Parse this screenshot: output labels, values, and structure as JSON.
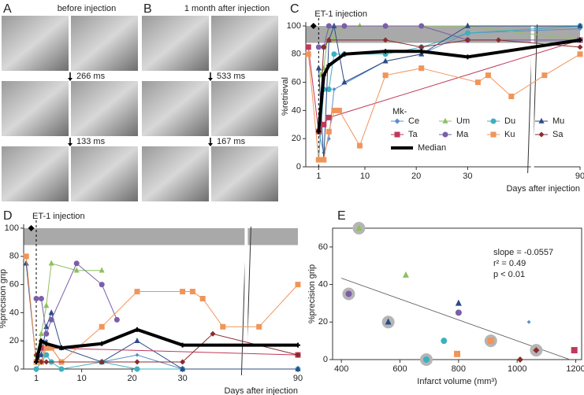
{
  "photo_panels": [
    {
      "panel": "A",
      "title": "before injection",
      "intervals": [
        "266 ms",
        "133 ms"
      ]
    },
    {
      "panel": "B",
      "title": "1 month after injection",
      "intervals": [
        "533 ms",
        "167 ms"
      ]
    }
  ],
  "chart_data": [
    {
      "type": "line",
      "panel": "C",
      "ylabel": "%retrieval",
      "xlabel": "Days after injection",
      "annotation": "ET-1 injection",
      "injection_day": 1,
      "shaded_band": [
        88,
        100
      ],
      "axis_break": [
        42,
        80
      ],
      "xlim": [
        -1.5,
        90
      ],
      "xticks": [
        1,
        10,
        20,
        30,
        90
      ],
      "ylim": [
        0,
        100
      ],
      "yticks": [
        0,
        20,
        40,
        60,
        80,
        100
      ],
      "legend_title": "Mk-",
      "legend": "lower right",
      "baseline_marker": {
        "x": 0,
        "y": 100,
        "color": "#000000"
      },
      "series": [
        {
          "name": "Ce",
          "color": "#5b8fc9",
          "marker": "diamond",
          "x": [
            1,
            2,
            3,
            4,
            14,
            21,
            30,
            90
          ],
          "values": [
            25,
            10,
            20,
            55,
            75,
            80,
            95,
            98
          ]
        },
        {
          "name": "Um",
          "color": "#8dc060",
          "marker": "triangle",
          "x": [
            1,
            1.5,
            2,
            3,
            4,
            6,
            9,
            14,
            30,
            90
          ],
          "values": [
            70,
            65,
            70,
            100,
            90,
            100,
            100,
            100,
            100,
            90
          ]
        },
        {
          "name": "Du",
          "color": "#3bb0c0",
          "marker": "circle",
          "x": [
            1,
            2,
            3,
            4,
            6,
            14,
            21,
            30,
            90
          ],
          "values": [
            5,
            55,
            55,
            80,
            80,
            80,
            85,
            95,
            100
          ]
        },
        {
          "name": "Mu",
          "color": "#2b4b86",
          "marker": "triangle",
          "x": [
            1,
            2,
            3,
            4,
            6,
            14,
            21,
            30,
            90
          ],
          "values": [
            70,
            5,
            90,
            100,
            60,
            75,
            80,
            100,
            100
          ]
        },
        {
          "name": "Ta",
          "color": "#c0395a",
          "marker": "square",
          "x": [
            -1,
            1,
            2,
            3,
            90
          ],
          "values": [
            85,
            25,
            30,
            35,
            90
          ]
        },
        {
          "name": "Ma",
          "color": "#7b5ea8",
          "marker": "circle",
          "x": [
            1,
            2,
            3,
            6,
            14,
            21,
            30,
            90
          ],
          "values": [
            85,
            85,
            100,
            100,
            100,
            100,
            90,
            90
          ]
        },
        {
          "name": "Ku",
          "color": "#f0955a",
          "marker": "square",
          "x": [
            -1,
            1,
            2,
            3,
            4,
            5,
            9,
            14,
            21,
            32,
            34,
            38.5,
            82,
            90
          ],
          "values": [
            80,
            5,
            5,
            25,
            40,
            40,
            15,
            65,
            70,
            60,
            65,
            50,
            65,
            80
          ]
        },
        {
          "name": "Sa",
          "color": "#8b2c2c",
          "marker": "diamond",
          "x": [
            1,
            2,
            3,
            14,
            21,
            30,
            36,
            90
          ],
          "values": [
            25,
            85,
            90,
            90,
            85,
            90,
            90,
            85
          ]
        },
        {
          "name": "Median",
          "color": "#000000",
          "marker": "plus",
          "width": 4,
          "x": [
            1,
            2,
            3,
            6,
            14,
            21,
            30,
            90
          ],
          "values": [
            25,
            65,
            72,
            80,
            82,
            82,
            78,
            90
          ]
        }
      ]
    },
    {
      "type": "line",
      "panel": "D",
      "ylabel": "%precision grip",
      "xlabel": "Days after injection",
      "annotation": "ET-1 injection",
      "injection_day": 1,
      "shaded_band": [
        88,
        100
      ],
      "axis_break": [
        42,
        80
      ],
      "xlim": [
        -1.5,
        90
      ],
      "xticks": [
        1,
        10,
        20,
        30,
        90
      ],
      "ylim": [
        0,
        100
      ],
      "yticks": [
        0,
        20,
        40,
        60,
        80,
        100
      ],
      "baseline_marker": {
        "x": 0,
        "y": 100,
        "color": "#000000"
      },
      "series": [
        {
          "color": "#5b8fc9",
          "marker": "diamond",
          "x": [
            1,
            2,
            3,
            6,
            14,
            21,
            30,
            90
          ],
          "values": [
            0,
            5,
            20,
            5,
            5,
            10,
            0,
            0
          ]
        },
        {
          "color": "#8dc060",
          "marker": "triangle",
          "x": [
            1,
            2,
            3,
            4,
            9,
            14
          ],
          "values": [
            10,
            25,
            45,
            75,
            70,
            70
          ]
        },
        {
          "color": "#3bb0c0",
          "marker": "circle",
          "x": [
            1,
            2,
            3,
            4,
            6,
            14,
            21,
            30,
            90
          ],
          "values": [
            0,
            5,
            10,
            5,
            0,
            5,
            0,
            0,
            0
          ]
        },
        {
          "color": "#2b4b86",
          "marker": "triangle",
          "x": [
            -1,
            1,
            2,
            3,
            4,
            6,
            14,
            21,
            30,
            90
          ],
          "values": [
            75,
            5,
            10,
            30,
            40,
            15,
            5,
            20,
            0,
            0
          ]
        },
        {
          "color": "#c0395a",
          "marker": "square",
          "x": [
            1,
            2,
            3,
            90
          ],
          "values": [
            5,
            15,
            15,
            10
          ]
        },
        {
          "color": "#7b5ea8",
          "marker": "circle",
          "x": [
            1,
            2,
            3,
            4,
            9,
            14,
            17
          ],
          "values": [
            50,
            50,
            25,
            35,
            75,
            60,
            35
          ]
        },
        {
          "color": "#f0955a",
          "marker": "square",
          "x": [
            -1,
            1,
            2,
            3,
            4,
            6,
            14,
            21,
            30,
            32,
            34,
            38,
            82,
            90
          ],
          "values": [
            80,
            5,
            5,
            15,
            15,
            5,
            30,
            55,
            55,
            55,
            50,
            30,
            30,
            60
          ]
        },
        {
          "color": "#8b2c2c",
          "marker": "diamond",
          "x": [
            1,
            2,
            3,
            14,
            21,
            30,
            36,
            90
          ],
          "values": [
            10,
            5,
            5,
            5,
            5,
            5,
            25,
            10
          ]
        },
        {
          "color": "#000000",
          "marker": "plus",
          "width": 4,
          "x": [
            1,
            2,
            3,
            6,
            14,
            21,
            30,
            90
          ],
          "values": [
            5,
            20,
            18,
            15,
            18,
            28,
            17,
            17
          ]
        }
      ]
    },
    {
      "type": "scatter",
      "panel": "E",
      "ylabel": "%precision grip",
      "xlabel": "Infarct volume (mm³)",
      "annotations": [
        "slope = -0.0557",
        "r² = 0.49",
        "p < 0.01"
      ],
      "xlim": [
        370,
        1220
      ],
      "xticks": [
        400,
        600,
        800,
        1000,
        1200
      ],
      "ylim": [
        0,
        70
      ],
      "yticks": [
        0,
        20,
        40,
        60
      ],
      "fit_line": {
        "x": [
          400,
          1180
        ],
        "values": [
          43.4,
          0
        ]
      },
      "series": [
        {
          "color": "#8dc060",
          "marker": "triangle",
          "x": [
            460,
            620
          ],
          "values": [
            70,
            45
          ],
          "halo": [
            true,
            false
          ]
        },
        {
          "color": "#7b5ea8",
          "marker": "circle",
          "x": [
            425,
            800
          ],
          "values": [
            35,
            25
          ],
          "halo": [
            true,
            false
          ]
        },
        {
          "color": "#2b4b86",
          "marker": "triangle",
          "x": [
            560,
            800
          ],
          "values": [
            20,
            30
          ],
          "halo": [
            true,
            false
          ]
        },
        {
          "color": "#3bb0c0",
          "marker": "circle",
          "x": [
            750,
            690
          ],
          "values": [
            10,
            0
          ],
          "halo": [
            false,
            true
          ]
        },
        {
          "color": "#f0955a",
          "marker": "square",
          "x": [
            910,
            795
          ],
          "values": [
            10,
            3
          ],
          "halo": [
            true,
            false
          ]
        },
        {
          "color": "#8b2c2c",
          "marker": "diamond",
          "x": [
            1065,
            1010
          ],
          "values": [
            5,
            0
          ],
          "halo": [
            true,
            false
          ]
        },
        {
          "color": "#c0395a",
          "marker": "square",
          "x": [
            1195
          ],
          "values": [
            5
          ],
          "halo": [
            false
          ]
        },
        {
          "color": "#5b8fc9",
          "marker": "diamond",
          "x": [
            1040
          ],
          "values": [
            20
          ],
          "halo": [
            false
          ]
        }
      ]
    }
  ]
}
